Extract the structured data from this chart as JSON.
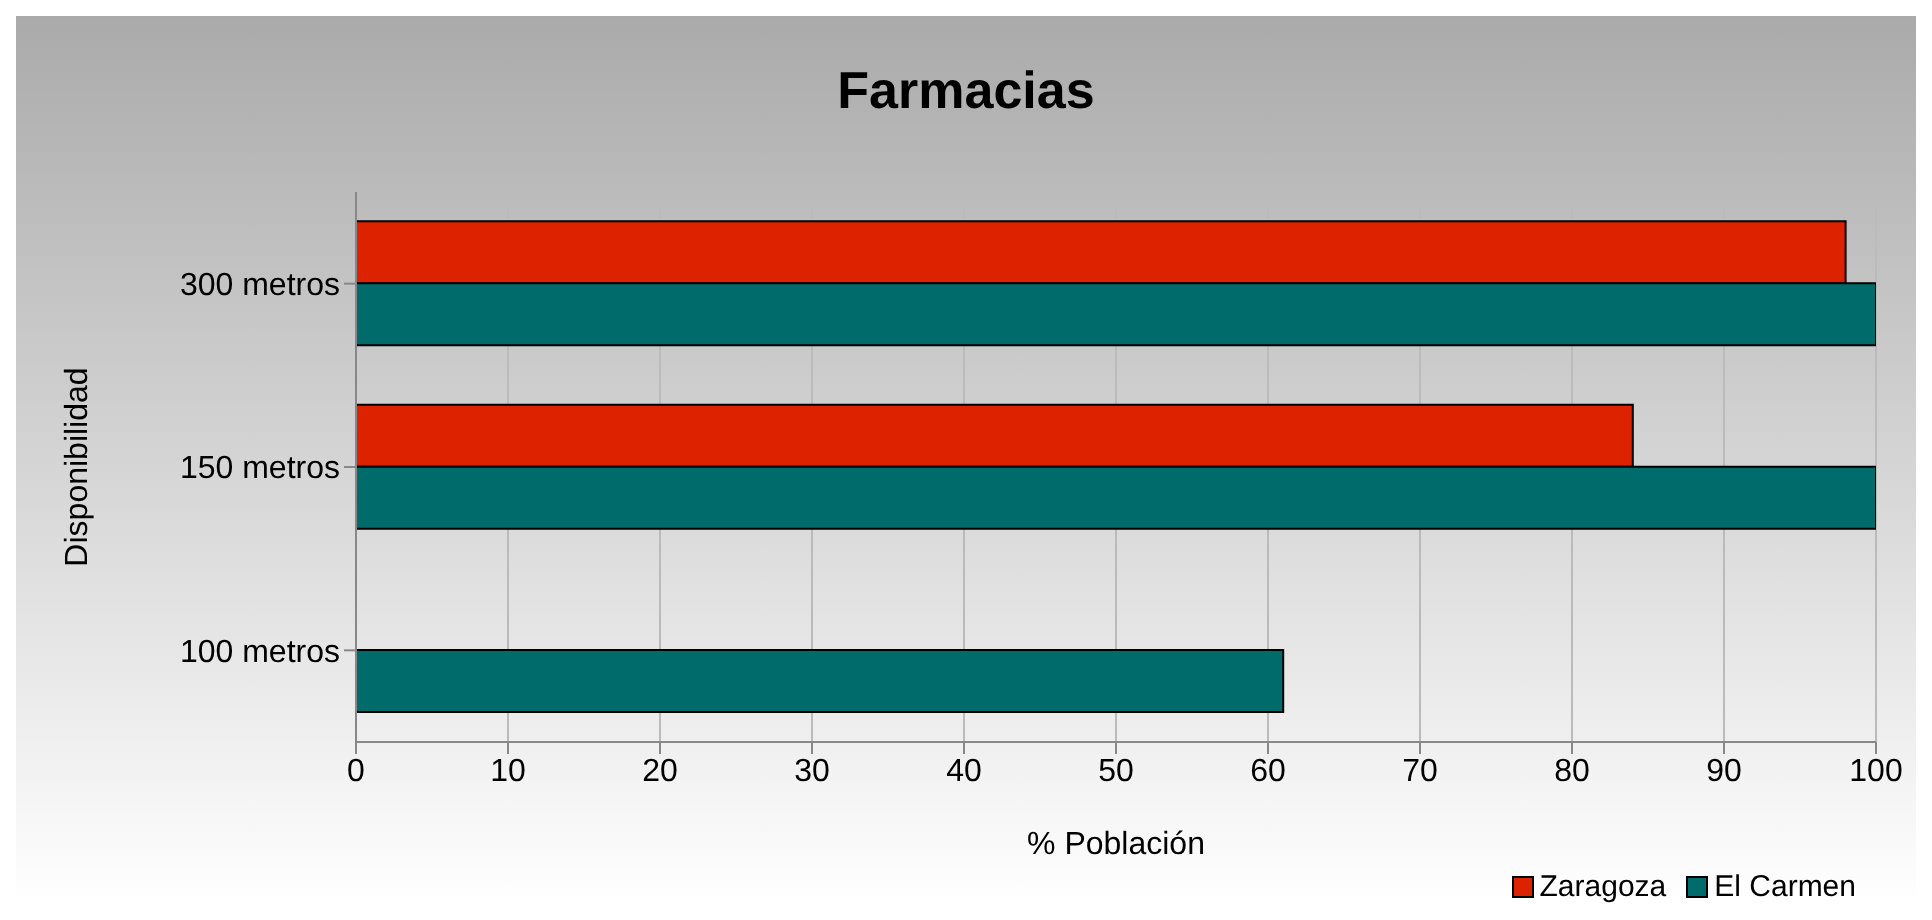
{
  "chart_data": {
    "type": "bar",
    "orientation": "horizontal",
    "title": "Farmacias",
    "xlabel": "% Población",
    "ylabel": "Disponibilidad",
    "categories": [
      "300 metros",
      "150 metros",
      "100 metros"
    ],
    "series": [
      {
        "name": "Zaragoza",
        "color": "#dd2200",
        "values": [
          98,
          84,
          null
        ]
      },
      {
        "name": "El Carmen",
        "color": "#006b6b",
        "values": [
          100,
          100,
          61
        ]
      }
    ],
    "xlim": [
      0,
      100
    ],
    "xticks": [
      0,
      10,
      20,
      30,
      40,
      50,
      60,
      70,
      80,
      90,
      100
    ],
    "grid": "x",
    "legend": "bottom right"
  }
}
